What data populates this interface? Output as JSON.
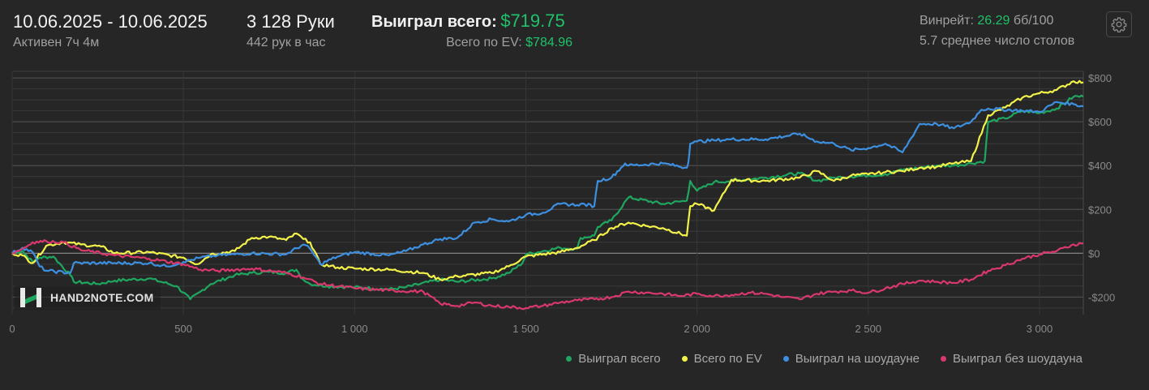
{
  "header": {
    "date_range": "10.06.2025 - 10.06.2025",
    "active_time": "Активен 7ч 4м",
    "hands": "3 128 Руки",
    "hands_per_hour": "442 рук в час",
    "won_total_label": "Выиграл всего:",
    "won_total_value": "$719.75",
    "ev_total_label": "Всего по EV:",
    "ev_total_value": "$784.96",
    "winrate_label": "Винрейт:",
    "winrate_value": "26.29",
    "winrate_unit": "бб/100",
    "tables_avg": "5.7 среднее число столов",
    "settings_icon": "gear-icon"
  },
  "logo": {
    "text": "HAND2NOTE.COM",
    "icon": "h2n-logo"
  },
  "colors": {
    "won": "#1fa65f",
    "ev": "#f2f24a",
    "showdown": "#3d8fe0",
    "non_showdown": "#d9386c",
    "accent_green": "#20c16a"
  },
  "chart_data": {
    "type": "line",
    "xlim": [
      0,
      3128
    ],
    "ylim": [
      -280,
      830
    ],
    "x_ticks": [
      0,
      500,
      1000,
      1500,
      2000,
      2500,
      3000
    ],
    "x_tick_labels": [
      "0",
      "500",
      "1 000",
      "1 500",
      "2 000",
      "2 500",
      "3 000"
    ],
    "y_ticks": [
      800,
      600,
      400,
      200,
      0,
      -200
    ],
    "y_tick_labels": [
      "$800",
      "$600",
      "$400",
      "$200",
      "$0",
      "-$200"
    ],
    "grid": true,
    "legend_position": "bottom-right",
    "series": [
      {
        "name": "Выиграл всего",
        "color": "#1fa65f",
        "x": [
          0,
          30,
          60,
          80,
          120,
          170,
          180,
          250,
          300,
          400,
          480,
          520,
          550,
          580,
          650,
          700,
          750,
          800,
          830,
          850,
          870,
          920,
          1000,
          1100,
          1150,
          1250,
          1300,
          1400,
          1450,
          1490,
          1500,
          1600,
          1650,
          1660,
          1700,
          1710,
          1750,
          1800,
          1900,
          1970,
          1980,
          2000,
          2050,
          2100,
          2200,
          2300,
          2350,
          2400,
          2450,
          2500,
          2550,
          2600,
          2650,
          2700,
          2750,
          2800,
          2840,
          2850,
          2900,
          2950,
          3000,
          3050,
          3100,
          3128
        ],
        "y": [
          0,
          10,
          -40,
          -20,
          -15,
          -100,
          -130,
          -140,
          -125,
          -115,
          -150,
          -210,
          -175,
          -140,
          -100,
          -90,
          -85,
          -90,
          -75,
          -120,
          -140,
          -150,
          -155,
          -165,
          -155,
          -120,
          -130,
          -115,
          -90,
          -45,
          -5,
          25,
          20,
          70,
          80,
          120,
          150,
          255,
          225,
          240,
          330,
          285,
          325,
          330,
          345,
          365,
          330,
          345,
          350,
          355,
          360,
          380,
          390,
          400,
          400,
          410,
          420,
          600,
          615,
          650,
          640,
          660,
          715,
          715
        ]
      },
      {
        "name": "Всего по EV",
        "color": "#f2f24a",
        "x": [
          0,
          30,
          60,
          100,
          150,
          200,
          260,
          300,
          400,
          500,
          540,
          580,
          650,
          700,
          750,
          800,
          830,
          850,
          870,
          900,
          950,
          1000,
          1100,
          1200,
          1250,
          1300,
          1400,
          1450,
          1500,
          1600,
          1650,
          1700,
          1750,
          1800,
          1850,
          1900,
          1970,
          1980,
          2000,
          2050,
          2100,
          2200,
          2300,
          2350,
          2400,
          2450,
          2500,
          2550,
          2600,
          2650,
          2700,
          2750,
          2800,
          2850,
          2900,
          2950,
          3000,
          3050,
          3100,
          3128
        ],
        "y": [
          0,
          -10,
          -45,
          35,
          50,
          40,
          30,
          0,
          5,
          -20,
          -50,
          -5,
          10,
          70,
          75,
          60,
          90,
          65,
          50,
          -50,
          -65,
          -70,
          -75,
          -90,
          -120,
          -105,
          -90,
          -60,
          -15,
          5,
          25,
          60,
          115,
          140,
          125,
          115,
          80,
          215,
          225,
          195,
          335,
          330,
          345,
          375,
          330,
          355,
          360,
          370,
          375,
          390,
          395,
          410,
          420,
          630,
          665,
          710,
          730,
          745,
          785,
          780
        ]
      },
      {
        "name": "Выиграл на шоудауне",
        "color": "#3d8fe0",
        "x": [
          0,
          30,
          60,
          80,
          100,
          170,
          180,
          400,
          450,
          500,
          550,
          600,
          650,
          700,
          800,
          850,
          870,
          900,
          950,
          1000,
          1100,
          1150,
          1200,
          1250,
          1300,
          1350,
          1400,
          1450,
          1500,
          1550,
          1600,
          1650,
          1660,
          1700,
          1710,
          1750,
          1790,
          1800,
          1900,
          1970,
          1975,
          1980,
          2000,
          2050,
          2100,
          2200,
          2300,
          2350,
          2400,
          2450,
          2500,
          2550,
          2600,
          2650,
          2700,
          2750,
          2800,
          2830,
          2850,
          2950,
          3000,
          3050,
          3100,
          3128
        ],
        "y": [
          0,
          25,
          5,
          -60,
          -80,
          -90,
          -45,
          -45,
          -60,
          -40,
          -20,
          -10,
          -5,
          0,
          -5,
          40,
          20,
          -50,
          -15,
          5,
          -10,
          10,
          40,
          65,
          70,
          140,
          155,
          145,
          175,
          185,
          225,
          220,
          225,
          215,
          330,
          345,
          410,
          400,
          410,
          390,
          420,
          500,
          510,
          515,
          520,
          520,
          545,
          510,
          500,
          470,
          480,
          500,
          460,
          590,
          590,
          570,
          600,
          655,
          660,
          650,
          645,
          690,
          680,
          670
        ]
      },
      {
        "name": "Выиграл без шоудауна",
        "color": "#d9386c",
        "x": [
          0,
          30,
          60,
          100,
          150,
          200,
          300,
          400,
          500,
          550,
          600,
          700,
          800,
          850,
          900,
          1000,
          1100,
          1200,
          1250,
          1300,
          1350,
          1400,
          1450,
          1500,
          1550,
          1600,
          1650,
          1700,
          1750,
          1800,
          1850,
          1900,
          1950,
          2000,
          2050,
          2100,
          2150,
          2200,
          2250,
          2300,
          2350,
          2400,
          2450,
          2500,
          2550,
          2600,
          2650,
          2700,
          2750,
          2800,
          2850,
          2900,
          2950,
          3000,
          3050,
          3100,
          3128
        ],
        "y": [
          0,
          20,
          50,
          55,
          50,
          15,
          -10,
          -25,
          -50,
          -75,
          -80,
          -70,
          -90,
          -110,
          -140,
          -160,
          -170,
          -175,
          -230,
          -240,
          -225,
          -240,
          -245,
          -250,
          -240,
          -225,
          -215,
          -210,
          -200,
          -175,
          -180,
          -185,
          -195,
          -185,
          -195,
          -190,
          -180,
          -185,
          -200,
          -210,
          -185,
          -175,
          -170,
          -180,
          -160,
          -140,
          -125,
          -130,
          -135,
          -120,
          -80,
          -55,
          -25,
          -5,
          10,
          40,
          45
        ]
      }
    ]
  }
}
